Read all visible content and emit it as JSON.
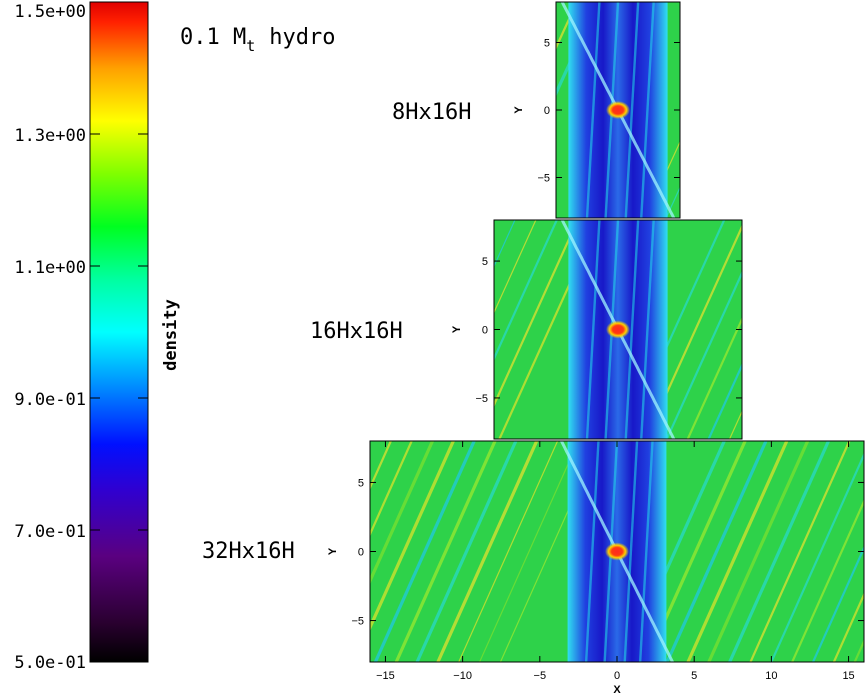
{
  "chart_data": {
    "type": "heatmap",
    "title": "0.1 M",
    "title_sub": "t",
    "title_suffix": "hydro",
    "colorbar": {
      "label": "density",
      "range": [
        0.5,
        1.5
      ],
      "tick_labels": [
        "1.5e+00",
        "1.3e+00",
        "1.1e+00",
        "9.0e-01",
        "7.0e-01",
        "5.0e-01"
      ],
      "tick_values": [
        1.5,
        1.3,
        1.1,
        0.9,
        0.7,
        0.5
      ],
      "colormap": "rainbow"
    },
    "panels": [
      {
        "label": "8Hx16H",
        "xlim": [
          -4,
          4
        ],
        "ylim": [
          -8,
          8
        ],
        "yticks": [
          "5",
          "0",
          "−5"
        ],
        "ytick_values": [
          5,
          0,
          -5
        ],
        "ylabel": "Y"
      },
      {
        "label": "16Hx16H",
        "xlim": [
          -8,
          8
        ],
        "ylim": [
          -8,
          8
        ],
        "yticks": [
          "5",
          "0",
          "−5"
        ],
        "ytick_values": [
          5,
          0,
          -5
        ],
        "ylabel": "Y"
      },
      {
        "label": "32Hx16H",
        "xlim": [
          -16,
          16
        ],
        "ylim": [
          -8,
          8
        ],
        "yticks": [
          "5",
          "0",
          "−5"
        ],
        "ytick_values": [
          5,
          0,
          -5
        ],
        "xticks": [
          "−15",
          "−10",
          "−5",
          "0",
          "5",
          "10",
          "15"
        ],
        "xtick_values": [
          -15,
          -10,
          -5,
          0,
          5,
          10,
          15
        ],
        "ylabel": "Y",
        "xlabel": "X"
      }
    ]
  },
  "colors": {
    "band": "#1e22d6",
    "cyan": "#22dcea",
    "green": "#2ed24a",
    "yellow": "#d8e22c",
    "core": "#e01010"
  }
}
